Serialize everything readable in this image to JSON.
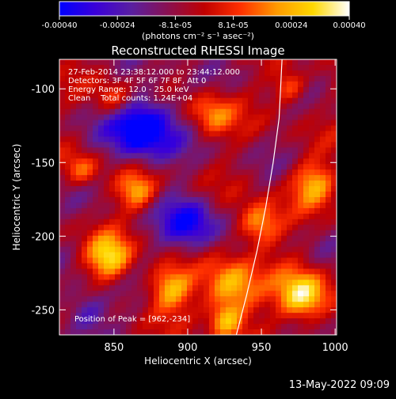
{
  "colorbar": {
    "ticks": [
      "-0.00040",
      "-0.00024",
      "-8.1e-05",
      "8.1e-05",
      "0.00024",
      "0.00040"
    ],
    "units_html": "(photons cm⁻² s⁻¹ asec⁻²)",
    "units": "(photons cm-2 s-1 asec-2)",
    "colors": [
      "#0000ff",
      "#3a00d8",
      "#5a1fa0",
      "#8a1050",
      "#c00000",
      "#ff3000",
      "#ff9a00",
      "#ffd900",
      "#ffffff"
    ]
  },
  "chart_data": {
    "type": "heatmap",
    "title": "Reconstructed RHESSI Image",
    "xlabel": "Heliocentric X (arcsec)",
    "ylabel": "Heliocentric Y (arcsec)",
    "xlim": [
      813,
      1001
    ],
    "ylim": [
      -267,
      -80
    ],
    "x_ticks": [
      850,
      900,
      950,
      1000
    ],
    "y_ticks": [
      -100,
      -150,
      -200,
      -250
    ],
    "limb_curve": [
      [
        933,
        -267
      ],
      [
        940,
        -240
      ],
      [
        947,
        -210
      ],
      [
        953,
        -180
      ],
      [
        958,
        -150
      ],
      [
        962,
        -120
      ],
      [
        964,
        -80
      ]
    ],
    "peak": [
      962,
      -234
    ],
    "annotations": [
      "27-Feb-2014 23:38:12.000 to 23:44:12.000",
      "Detectors: 3F 4F 5F 6F 7F 8F, Att 0",
      "Energy Range: 12.0 - 25.0 keV",
      "Clean    Total counts: 1.24E+04",
      "Position of Peak = [962,-234]"
    ]
  },
  "footer": {
    "date": "13-May-2022 09:09"
  }
}
